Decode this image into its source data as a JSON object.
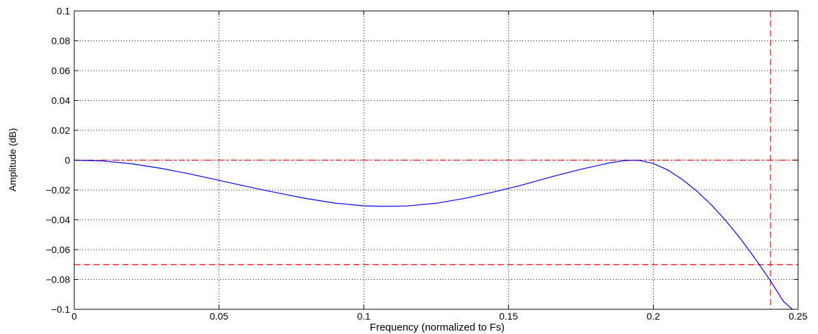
{
  "chart_data": {
    "type": "line",
    "title": "",
    "xlabel": "Frequency (normalized to Fs)",
    "ylabel": "Amplitude (dB)",
    "xlim": [
      0,
      0.25
    ],
    "ylim": [
      -0.1,
      0.1
    ],
    "x_ticks": [
      0,
      0.05,
      0.1,
      0.15,
      0.2,
      0.25
    ],
    "x_tick_labels": [
      "0",
      "0.05",
      "0.1",
      "0.15",
      "0.2",
      "0.25"
    ],
    "y_ticks": [
      0.1,
      0.08,
      0.06,
      0.04,
      0.02,
      0,
      -0.02,
      -0.04,
      -0.06,
      -0.08,
      -0.1
    ],
    "y_tick_labels": [
      "0.1",
      "0.08",
      "0.06",
      "0.04",
      "0.02",
      "0",
      "−0.02",
      "−0.04",
      "−0.06",
      "−0.08",
      "−0.1"
    ],
    "grid": true,
    "series": [
      {
        "color": "#0000ff",
        "style": "solid",
        "x": [
          0,
          0.01,
          0.02,
          0.03,
          0.04,
          0.05,
          0.06,
          0.07,
          0.08,
          0.09,
          0.1,
          0.107,
          0.115,
          0.125,
          0.135,
          0.145,
          0.155,
          0.165,
          0.175,
          0.185,
          0.19,
          0.195,
          0.2,
          0.205,
          0.21,
          0.215,
          0.22,
          0.225,
          0.23,
          0.235,
          0.24,
          0.245,
          0.248
        ],
        "y": [
          0,
          -0.0006,
          -0.0025,
          -0.0055,
          -0.0093,
          -0.0135,
          -0.0178,
          -0.0219,
          -0.0257,
          -0.0288,
          -0.0306,
          -0.031,
          -0.0307,
          -0.0289,
          -0.0256,
          -0.0213,
          -0.0165,
          -0.0111,
          -0.0061,
          -0.0018,
          -0.0003,
          -0.0001,
          -0.0022,
          -0.0066,
          -0.0129,
          -0.0207,
          -0.0298,
          -0.0405,
          -0.0524,
          -0.0655,
          -0.0796,
          -0.0947,
          -0.1
        ]
      }
    ],
    "reference_lines": [
      {
        "orientation": "horizontal",
        "value": 0,
        "color": "#ff0000",
        "style": "dashdot"
      },
      {
        "orientation": "horizontal",
        "value": -0.07,
        "color": "#ff0000",
        "style": "dashed"
      },
      {
        "orientation": "vertical",
        "value": 0.2405,
        "color": "#ff0000",
        "style": "dashed"
      }
    ]
  }
}
